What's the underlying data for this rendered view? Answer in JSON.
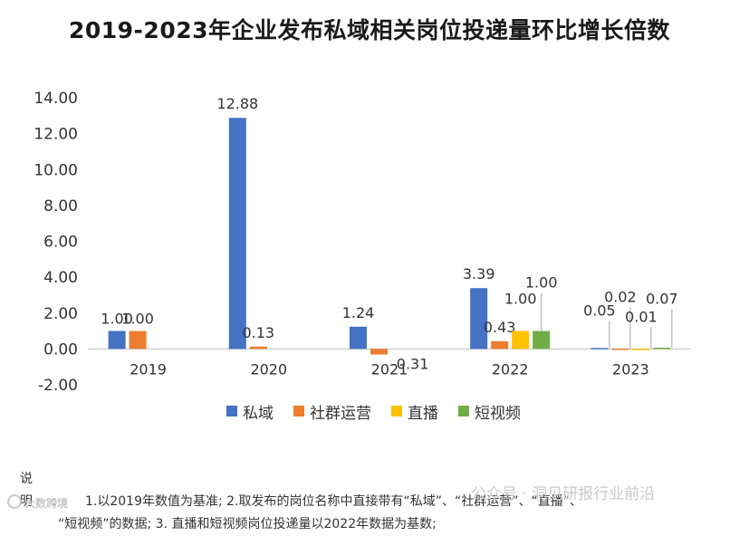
{
  "chart_data": {
    "type": "bar",
    "title": "2019-2023年企业发布私域相关岗位投递量环比增长倍数",
    "categories": [
      "2019",
      "2020",
      "2021",
      "2022",
      "2023"
    ],
    "ylim": [
      -2,
      14
    ],
    "yticks": [
      14,
      12,
      10,
      8,
      6,
      4,
      2,
      0,
      -2
    ],
    "ytick_labels": [
      "14.00",
      "12.00",
      "10.00",
      "8.00",
      "6.00",
      "4.00",
      "2.00",
      "0.00",
      "-2.00"
    ],
    "series": [
      {
        "name": "私域",
        "color": "#4472C4",
        "values": [
          1.0,
          12.88,
          1.24,
          3.39,
          0.05
        ],
        "labels": [
          "1.00",
          "12.88",
          "1.24",
          "3.39",
          "0.05"
        ]
      },
      {
        "name": "社群运营",
        "color": "#ED7D31",
        "values": [
          1.0,
          0.13,
          -0.31,
          0.43,
          0.02
        ],
        "labels": [
          "1.00",
          "0.13",
          "-0.31",
          "0.43",
          "0.02"
        ]
      },
      {
        "name": "直播",
        "color": "#FFC000",
        "values": [
          null,
          null,
          null,
          1.0,
          0.01
        ],
        "labels": [
          null,
          null,
          null,
          "1.00",
          "0.01"
        ]
      },
      {
        "name": "短视频",
        "color": "#70AD47",
        "values": [
          null,
          null,
          null,
          1.0,
          0.07
        ],
        "labels": [
          null,
          null,
          null,
          "1.00",
          "0.07"
        ]
      }
    ],
    "legend_position": "bottom"
  },
  "notes": {
    "label": "说明:",
    "line1": "1.以2019年数值为基准;  2.取发布的岗位名称中直接带有“私域”、“社群运营”、“直播”、",
    "line2": "“短视频”的数据; 3. 直播和短视频岗位投递量以2022年数据为基数;"
  },
  "watermarks": {
    "left": "大数跨境",
    "right": "公众号 · 洞见研报行业前沿"
  }
}
